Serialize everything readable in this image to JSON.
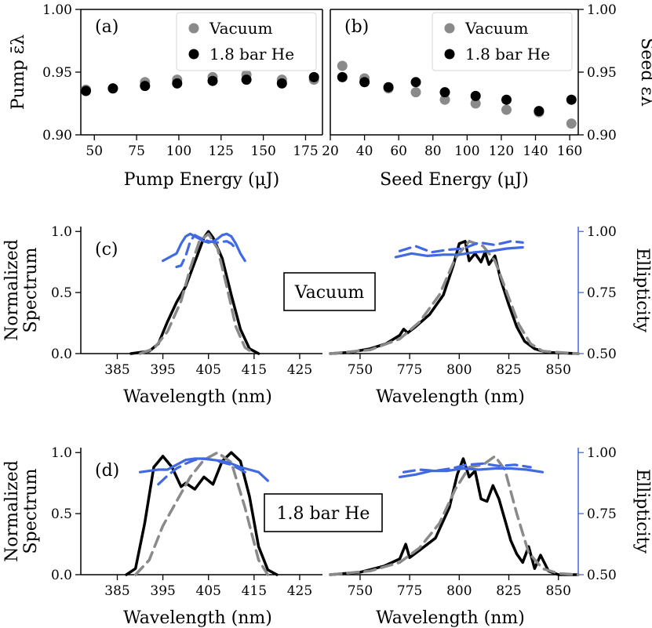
{
  "colors": {
    "vacuum_marker": "#8a8a8a",
    "he_marker": "#000000",
    "spectrum_measured": "#000000",
    "spectrum_reference": "#8a8a8a",
    "ellipticity": "#4169e1"
  },
  "chart_data": [
    {
      "id": "a",
      "type": "scatter",
      "panel_label": "(a)",
      "xlabel": "Pump Energy (μJ)",
      "ylabel": "Pump ε̄λ",
      "xlim": [
        42,
        185
      ],
      "ylim": [
        0.9,
        1.0
      ],
      "xticks": [
        50,
        75,
        100,
        125,
        150,
        175
      ],
      "yticks": [
        0.9,
        0.95,
        1.0
      ],
      "ytick_labels": [
        "0.90",
        "0.95",
        "1.00"
      ],
      "legend": [
        "Vacuum",
        "1.8 bar He"
      ],
      "legend_position": "top-right",
      "series": [
        {
          "name": "Vacuum",
          "x": [
            45,
            61,
            80,
            99,
            120,
            140,
            161,
            180
          ],
          "y": [
            0.936,
            0.937,
            0.942,
            0.944,
            0.946,
            0.948,
            0.944,
            0.944
          ]
        },
        {
          "name": "1.8 bar He",
          "x": [
            45,
            61,
            80,
            99,
            120,
            140,
            161,
            180
          ],
          "y": [
            0.935,
            0.937,
            0.939,
            0.941,
            0.943,
            0.944,
            0.941,
            0.946
          ]
        }
      ]
    },
    {
      "id": "b",
      "type": "scatter",
      "panel_label": "(b)",
      "xlabel": "Seed Energy (μJ)",
      "ylabel": "Seed ε̄λ",
      "xlim": [
        20,
        165
      ],
      "ylim": [
        0.9,
        1.0
      ],
      "xticks": [
        20,
        40,
        60,
        80,
        100,
        120,
        140,
        160
      ],
      "yticks": [
        0.9,
        0.95,
        1.0
      ],
      "ytick_labels": [
        "0.90",
        "0.95",
        "1.00"
      ],
      "legend": [
        "Vacuum",
        "1.8 bar He"
      ],
      "legend_position": "top-right",
      "series": [
        {
          "name": "Vacuum",
          "x": [
            27,
            40,
            54,
            70,
            87,
            105,
            123,
            142,
            161
          ],
          "y": [
            0.955,
            0.945,
            0.937,
            0.934,
            0.928,
            0.925,
            0.92,
            0.918,
            0.909
          ]
        },
        {
          "name": "1.8 bar He",
          "x": [
            27,
            40,
            54,
            70,
            87,
            105,
            123,
            142,
            161
          ],
          "y": [
            0.946,
            0.942,
            0.938,
            0.942,
            0.934,
            0.931,
            0.928,
            0.919,
            0.928
          ]
        }
      ]
    },
    {
      "id": "c",
      "type": "line",
      "panel_label": "(c)",
      "box_label": "Vacuum",
      "xlabel_left": "Wavelength (nm)",
      "xlabel_right": "Wavelength (nm)",
      "ylabel": [
        "Normalized",
        "Spectrum"
      ],
      "ylabel_right": "Ellipticity",
      "left_xlim": [
        377,
        430
      ],
      "right_xlim": [
        735,
        860
      ],
      "ylim": [
        0,
        1.04
      ],
      "right_ylim": [
        0.5,
        1.02
      ],
      "left_xticks": [
        385,
        395,
        405,
        415,
        425
      ],
      "right_xticks": [
        750,
        775,
        800,
        825,
        850
      ],
      "yticks": [
        0,
        0.5,
        1.0
      ],
      "ytick_labels": [
        "0.0",
        "0.5",
        "1.0"
      ],
      "right_yticks": [
        0.5,
        0.75,
        1.0
      ],
      "right_ytick_labels": [
        "0.50",
        "0.75",
        "1.00"
      ],
      "left_series": [
        {
          "name": "measured",
          "style": "solid",
          "x": [
            388,
            392,
            394,
            396,
            398,
            400,
            402,
            404,
            405,
            406,
            408,
            410,
            412,
            414,
            416
          ],
          "y": [
            0.0,
            0.02,
            0.08,
            0.26,
            0.42,
            0.55,
            0.75,
            0.95,
            1.0,
            0.95,
            0.78,
            0.48,
            0.2,
            0.04,
            0.0
          ]
        },
        {
          "name": "reference",
          "style": "dashed",
          "x": [
            390,
            393,
            396,
            399,
            401,
            403,
            405,
            407,
            409,
            411,
            413,
            415
          ],
          "y": [
            0.0,
            0.04,
            0.18,
            0.43,
            0.7,
            0.92,
            0.98,
            0.86,
            0.55,
            0.22,
            0.05,
            0.0
          ]
        },
        {
          "name": "ellipticity-1",
          "style": "ellipticity-solid",
          "x": [
            395,
            396,
            397,
            398,
            399,
            400,
            401,
            402,
            403,
            404,
            405,
            406,
            407,
            408,
            409,
            410,
            411,
            412,
            413
          ],
          "y": [
            0.88,
            0.89,
            0.9,
            0.91,
            0.95,
            0.98,
            0.99,
            0.98,
            0.97,
            0.96,
            0.955,
            0.96,
            0.97,
            0.985,
            0.99,
            0.98,
            0.95,
            0.91,
            0.88
          ]
        },
        {
          "name": "ellipticity-2",
          "style": "ellipticity-dashed",
          "x": [
            398,
            399,
            400,
            401,
            402,
            403,
            405,
            407,
            409,
            410,
            411
          ],
          "y": [
            0.855,
            0.86,
            0.9,
            0.96,
            0.985,
            0.975,
            0.96,
            0.955,
            0.96,
            0.95,
            0.93
          ]
        }
      ],
      "right_series": [
        {
          "name": "measured",
          "style": "solid",
          "x": [
            735,
            745,
            755,
            763,
            770,
            772,
            774,
            778,
            785,
            792,
            797,
            800,
            803,
            805,
            808,
            811,
            813,
            815,
            818,
            821,
            825,
            829,
            833,
            838,
            844,
            852,
            860
          ],
          "y": [
            0.0,
            0.01,
            0.04,
            0.08,
            0.15,
            0.2,
            0.17,
            0.22,
            0.32,
            0.48,
            0.72,
            0.9,
            0.92,
            0.76,
            0.82,
            0.75,
            0.83,
            0.73,
            0.8,
            0.6,
            0.4,
            0.22,
            0.1,
            0.04,
            0.01,
            0.005,
            0.0
          ]
        },
        {
          "name": "reference",
          "style": "dashed",
          "x": [
            735,
            755,
            770,
            780,
            790,
            798,
            805,
            812,
            818,
            824,
            830,
            836,
            842,
            850,
            860
          ],
          "y": [
            0.0,
            0.03,
            0.12,
            0.26,
            0.48,
            0.78,
            0.92,
            0.88,
            0.76,
            0.5,
            0.24,
            0.08,
            0.02,
            0.01,
            0.0
          ]
        },
        {
          "name": "ellipticity-1",
          "style": "ellipticity-solid",
          "x": [
            768,
            776,
            784,
            792,
            800,
            808,
            816,
            824,
            832
          ],
          "y": [
            0.895,
            0.91,
            0.9,
            0.905,
            0.905,
            0.915,
            0.92,
            0.93,
            0.935
          ]
        },
        {
          "name": "ellipticity-2",
          "style": "ellipticity-dashed",
          "x": [
            770,
            778,
            786,
            794,
            802,
            810,
            818,
            826,
            832
          ],
          "y": [
            0.92,
            0.94,
            0.915,
            0.925,
            0.93,
            0.955,
            0.945,
            0.96,
            0.955
          ]
        }
      ]
    },
    {
      "id": "d",
      "type": "line",
      "panel_label": "(d)",
      "box_label": "1.8 bar He",
      "xlabel_left": "Wavelength (nm)",
      "xlabel_right": "Wavelength (nm)",
      "ylabel": [
        "Normalized",
        "Spectrum"
      ],
      "ylabel_right": "Ellipticity",
      "left_xlim": [
        377,
        430
      ],
      "right_xlim": [
        735,
        860
      ],
      "ylim": [
        0,
        1.04
      ],
      "right_ylim": [
        0.5,
        1.02
      ],
      "left_xticks": [
        385,
        395,
        405,
        415,
        425
      ],
      "right_xticks": [
        750,
        775,
        800,
        825,
        850
      ],
      "yticks": [
        0,
        0.5,
        1.0
      ],
      "ytick_labels": [
        "0.0",
        "0.5",
        "1.0"
      ],
      "right_yticks": [
        0.5,
        0.75,
        1.0
      ],
      "right_ytick_labels": [
        "0.50",
        "0.75",
        "1.00"
      ],
      "left_series": [
        {
          "name": "measured",
          "style": "solid",
          "x": [
            387,
            389,
            391,
            393,
            395,
            397,
            399,
            400,
            402,
            404,
            406,
            408,
            410,
            412,
            414,
            416,
            418,
            420
          ],
          "y": [
            0.0,
            0.05,
            0.42,
            0.88,
            0.97,
            0.88,
            0.72,
            0.75,
            0.7,
            0.8,
            0.74,
            0.93,
            1.0,
            0.93,
            0.64,
            0.23,
            0.04,
            0.0
          ]
        },
        {
          "name": "reference",
          "style": "dashed",
          "x": [
            389,
            392,
            395,
            398,
            401,
            404,
            407,
            410,
            413,
            416,
            418
          ],
          "y": [
            0.0,
            0.12,
            0.4,
            0.6,
            0.8,
            0.94,
            1.0,
            0.92,
            0.55,
            0.12,
            0.0
          ]
        },
        {
          "name": "ellipticity-1",
          "style": "ellipticity-solid",
          "x": [
            390,
            392,
            394,
            396,
            398,
            400,
            402,
            404,
            406,
            408,
            410,
            412,
            414,
            416,
            418
          ],
          "y": [
            0.92,
            0.925,
            0.93,
            0.93,
            0.95,
            0.97,
            0.975,
            0.975,
            0.97,
            0.965,
            0.955,
            0.94,
            0.93,
            0.92,
            0.885
          ]
        },
        {
          "name": "ellipticity-2",
          "style": "ellipticity-dashed",
          "x": [
            394,
            396,
            398,
            400,
            402,
            404,
            406,
            408,
            410,
            412,
            414
          ],
          "y": [
            0.87,
            0.905,
            0.935,
            0.955,
            0.97,
            0.975,
            0.97,
            0.96,
            0.95,
            0.93,
            0.91
          ]
        }
      ],
      "right_series": [
        {
          "name": "measured",
          "style": "solid",
          "x": [
            735,
            750,
            762,
            770,
            773,
            775,
            780,
            788,
            795,
            799,
            802,
            805,
            808,
            811,
            814,
            817,
            820,
            823,
            826,
            829,
            832,
            835,
            838,
            841,
            845,
            850,
            860
          ],
          "y": [
            0.0,
            0.02,
            0.07,
            0.13,
            0.25,
            0.14,
            0.2,
            0.3,
            0.55,
            0.82,
            0.95,
            0.8,
            0.85,
            0.62,
            0.6,
            0.73,
            0.62,
            0.45,
            0.28,
            0.17,
            0.1,
            0.23,
            0.05,
            0.16,
            0.03,
            0.0,
            0.0
          ]
        },
        {
          "name": "reference",
          "style": "dashed",
          "x": [
            735,
            755,
            770,
            780,
            790,
            798,
            805,
            812,
            818,
            823,
            829,
            835,
            842,
            850,
            860
          ],
          "y": [
            0.0,
            0.03,
            0.1,
            0.22,
            0.42,
            0.7,
            0.88,
            0.9,
            0.97,
            0.86,
            0.5,
            0.18,
            0.05,
            0.01,
            0.0
          ]
        },
        {
          "name": "ellipticity-1",
          "style": "ellipticity-solid",
          "x": [
            770,
            778,
            786,
            794,
            802,
            810,
            818,
            826,
            834,
            842
          ],
          "y": [
            0.9,
            0.91,
            0.925,
            0.925,
            0.935,
            0.93,
            0.935,
            0.935,
            0.93,
            0.92
          ]
        },
        {
          "name": "ellipticity-2",
          "style": "ellipticity-dashed",
          "x": [
            772,
            780,
            788,
            796,
            804,
            812,
            820,
            828,
            836
          ],
          "y": [
            0.92,
            0.93,
            0.925,
            0.935,
            0.95,
            0.955,
            0.945,
            0.95,
            0.94
          ]
        }
      ]
    }
  ]
}
